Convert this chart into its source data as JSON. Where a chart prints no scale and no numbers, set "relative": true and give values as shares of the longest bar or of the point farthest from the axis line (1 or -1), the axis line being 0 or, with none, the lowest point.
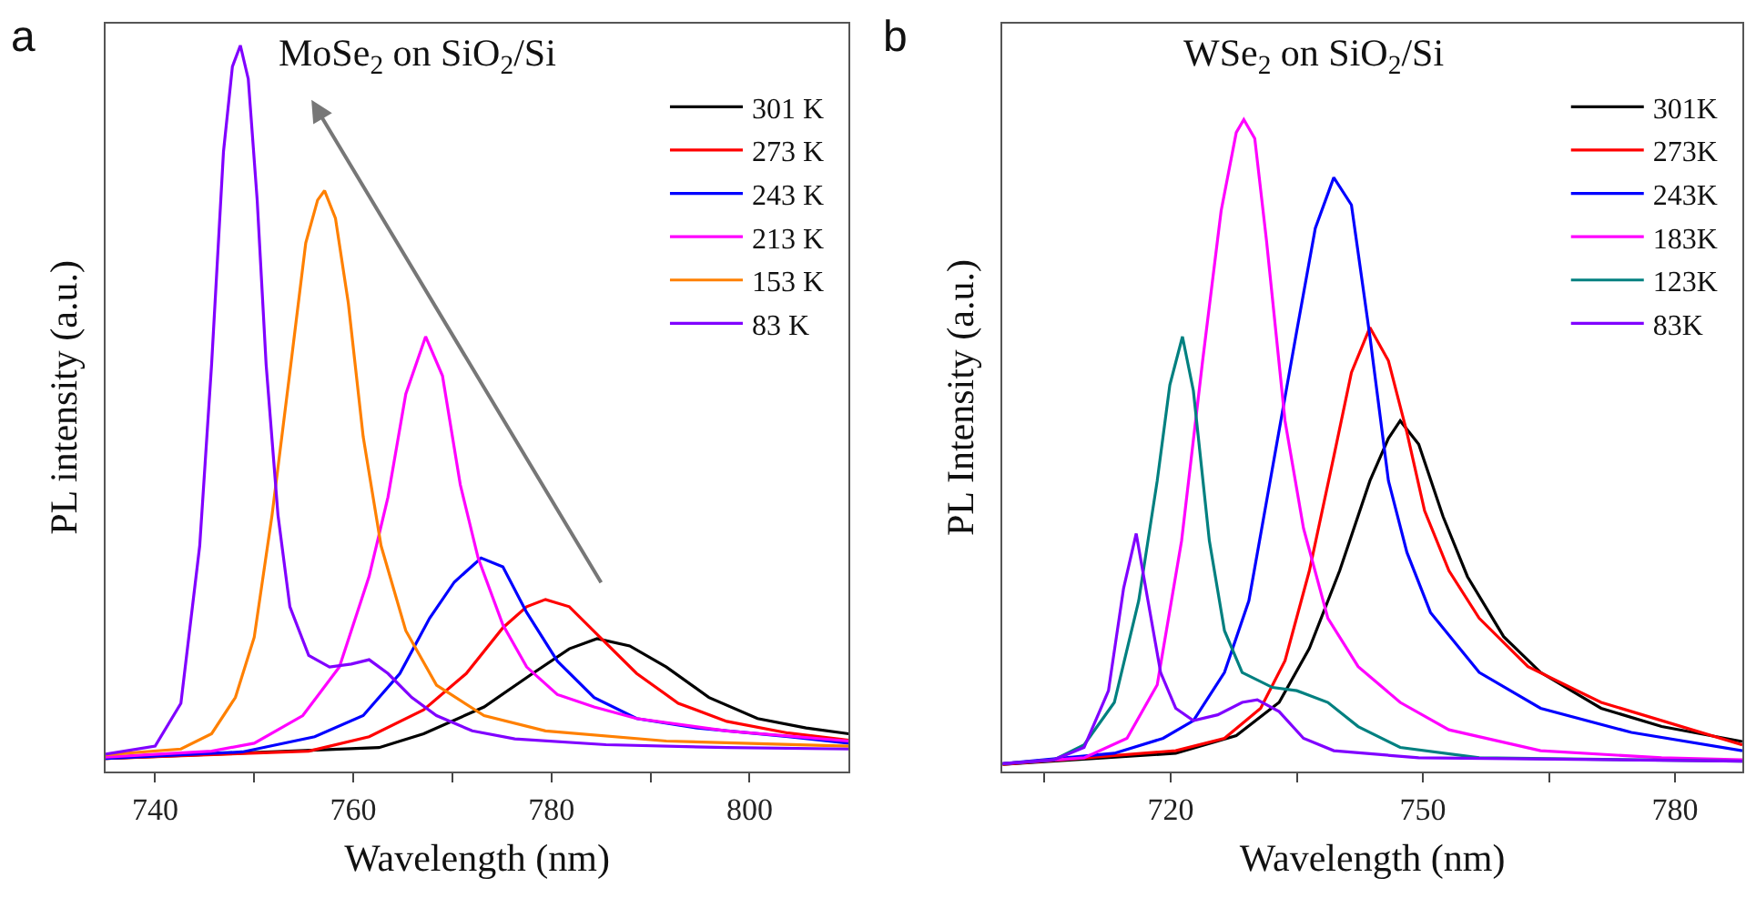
{
  "chart_data": [
    {
      "type": "line",
      "title": "MoSe$_{2}$ on SiO$_{2}$/Si",
      "xlabel": "Wavelength (nm)",
      "ylabel": "PL intensity (a.u.)",
      "annotations": [
        "a"
      ],
      "relative": true,
      "legend": "top right",
      "xlim": [
        735,
        810
      ],
      "xticks": [
        740,
        {
          "value": 750,
          "label": null
        },
        760,
        {
          "value": 770,
          "label": null
        },
        780,
        {
          "value": 790,
          "label": null
        },
        800
      ],
      "series": [
        {
          "name": "301 K",
          "color": "#000000",
          "x": [
            735,
            762.6,
            767.1,
            773.2,
            778.1,
            781.8,
            784.6,
            787.9,
            791.6,
            795.9,
            800.8,
            805.7,
            810
          ],
          "values": [
            0.018,
            0.033,
            0.052,
            0.089,
            0.135,
            0.169,
            0.183,
            0.173,
            0.144,
            0.102,
            0.073,
            0.06,
            0.052
          ]
        },
        {
          "name": "273 K",
          "color": "#ff0000",
          "x": [
            735,
            755.5,
            761.6,
            767.1,
            771.4,
            775.1,
            777.5,
            779.4,
            781.8,
            784.9,
            788.6,
            792.8,
            797.7,
            803.9,
            810
          ],
          "values": [
            0.018,
            0.028,
            0.048,
            0.085,
            0.135,
            0.198,
            0.227,
            0.237,
            0.227,
            0.185,
            0.135,
            0.094,
            0.069,
            0.053,
            0.043
          ]
        },
        {
          "name": "243 K",
          "color": "#0000ff",
          "x": [
            735,
            748.8,
            756.1,
            761,
            764.7,
            767.7,
            770.2,
            772.9,
            775.1,
            777.5,
            780.6,
            784.3,
            788.6,
            794.7,
            803.9,
            810
          ],
          "values": [
            0.018,
            0.027,
            0.048,
            0.077,
            0.135,
            0.211,
            0.261,
            0.294,
            0.282,
            0.219,
            0.152,
            0.102,
            0.073,
            0.06,
            0.048,
            0.039
          ]
        },
        {
          "name": "213 K",
          "color": "#ff00ff",
          "x": [
            735,
            745.7,
            750,
            754.9,
            758.6,
            761.6,
            763.5,
            765.3,
            767.3,
            769,
            770.8,
            772.6,
            775.1,
            777.5,
            780.6,
            784.3,
            788.6,
            797.7,
            810
          ],
          "values": [
            0.02,
            0.028,
            0.039,
            0.077,
            0.144,
            0.269,
            0.378,
            0.52,
            0.599,
            0.545,
            0.395,
            0.294,
            0.202,
            0.144,
            0.106,
            0.089,
            0.073,
            0.056,
            0.042
          ]
        },
        {
          "name": "153 K",
          "color": "#ff8000",
          "x": [
            735,
            742.6,
            745.7,
            748.1,
            750,
            751.8,
            753.7,
            755.2,
            756.4,
            757.1,
            758.2,
            759.5,
            761,
            762.8,
            765.3,
            768.4,
            773.2,
            779.4,
            791.6,
            810
          ],
          "values": [
            0.023,
            0.031,
            0.052,
            0.102,
            0.185,
            0.353,
            0.561,
            0.728,
            0.787,
            0.8,
            0.762,
            0.645,
            0.461,
            0.311,
            0.194,
            0.119,
            0.077,
            0.056,
            0.042,
            0.035
          ]
        },
        {
          "name": "83 K",
          "color": "#8000ff",
          "x": [
            735,
            740,
            742.6,
            744.5,
            745.7,
            746.9,
            747.8,
            748.6,
            749.4,
            750.3,
            751.2,
            752.4,
            753.6,
            755.5,
            757.6,
            759.8,
            761.6,
            763.5,
            765.9,
            768.4,
            772,
            776.3,
            785.5,
            797.7,
            810
          ],
          "values": [
            0.024,
            0.035,
            0.094,
            0.311,
            0.561,
            0.854,
            0.971,
            1,
            0.954,
            0.787,
            0.561,
            0.353,
            0.227,
            0.16,
            0.144,
            0.148,
            0.154,
            0.135,
            0.102,
            0.077,
            0.056,
            0.045,
            0.037,
            0.033,
            0.031
          ]
        }
      ]
    },
    {
      "type": "line",
      "title": "WSe$_{2}$ on SiO$_{2}$/Si",
      "xlabel": "Wavelength (nm)",
      "ylabel": "PL Intensity (a.u.)",
      "annotations": [
        "b"
      ],
      "relative": true,
      "legend": "top right",
      "xlim": [
        700,
        788
      ],
      "xticks": [
        {
          "value": 705,
          "label": null
        },
        720,
        {
          "value": 735,
          "label": null
        },
        750,
        {
          "value": 765,
          "label": null
        },
        780
      ],
      "series": [
        {
          "name": "301K",
          "color": "#000000",
          "x": [
            700,
            720.6,
            727.8,
            732.9,
            736.5,
            740.1,
            743.7,
            745.9,
            747.3,
            749.5,
            752.4,
            755.3,
            759.6,
            764,
            771.2,
            778.4,
            788
          ],
          "values": [
            0.011,
            0.028,
            0.055,
            0.106,
            0.189,
            0.308,
            0.446,
            0.511,
            0.538,
            0.502,
            0.391,
            0.299,
            0.207,
            0.152,
            0.097,
            0.069,
            0.046
          ]
        },
        {
          "name": "273K",
          "color": "#ff0000",
          "x": [
            700,
            720.6,
            726.4,
            730.7,
            733.6,
            736.5,
            739.4,
            741.5,
            743.7,
            745.9,
            748.1,
            750.2,
            753.1,
            756.7,
            762.5,
            771.2,
            788
          ],
          "values": [
            0.011,
            0.032,
            0.051,
            0.097,
            0.17,
            0.308,
            0.483,
            0.612,
            0.681,
            0.63,
            0.52,
            0.4,
            0.308,
            0.235,
            0.161,
            0.106,
            0.041
          ]
        },
        {
          "name": "243K",
          "color": "#0000ff",
          "x": [
            700,
            713.3,
            719.1,
            722.7,
            726.4,
            729.3,
            732.1,
            735,
            737.2,
            739.4,
            741.5,
            743.7,
            745.9,
            748.1,
            750.9,
            756.7,
            764,
            774.8,
            788
          ],
          "values": [
            0.012,
            0.028,
            0.051,
            0.078,
            0.152,
            0.262,
            0.465,
            0.676,
            0.833,
            0.911,
            0.869,
            0.667,
            0.446,
            0.336,
            0.244,
            0.152,
            0.097,
            0.06,
            0.032
          ]
        },
        {
          "name": "183K",
          "color": "#ff00ff",
          "x": [
            700,
            709.7,
            714.8,
            718.4,
            721.3,
            723.8,
            726,
            727.8,
            728.7,
            730,
            731.4,
            733.6,
            735.8,
            738.7,
            742.3,
            747.3,
            753.1,
            764,
            778.4,
            788
          ],
          "values": [
            0.012,
            0.021,
            0.051,
            0.133,
            0.354,
            0.63,
            0.86,
            0.98,
            1,
            0.971,
            0.814,
            0.538,
            0.373,
            0.235,
            0.161,
            0.106,
            0.064,
            0.032,
            0.021,
            0.018
          ]
        },
        {
          "name": "123K",
          "color": "#008080",
          "x": [
            700,
            706.1,
            709.7,
            713.3,
            716.2,
            718.4,
            719.9,
            721.4,
            722.7,
            724.6,
            726.4,
            728.5,
            732.1,
            735,
            738.7,
            742.3,
            747.3,
            756.7,
            788
          ],
          "values": [
            0.012,
            0.018,
            0.041,
            0.106,
            0.262,
            0.446,
            0.593,
            0.667,
            0.584,
            0.354,
            0.216,
            0.152,
            0.129,
            0.124,
            0.106,
            0.069,
            0.037,
            0.021,
            0.016
          ]
        },
        {
          "name": "83K",
          "color": "#8000ff",
          "x": [
            700,
            706.1,
            709.7,
            712.6,
            714.4,
            715.9,
            717.3,
            718.8,
            720.6,
            722.7,
            725.6,
            728.5,
            730.3,
            732.9,
            735.8,
            739.4,
            749.5,
            788
          ],
          "values": [
            0.012,
            0.018,
            0.037,
            0.124,
            0.281,
            0.365,
            0.262,
            0.152,
            0.097,
            0.078,
            0.087,
            0.106,
            0.11,
            0.092,
            0.051,
            0.032,
            0.021,
            0.016
          ]
        }
      ]
    }
  ]
}
